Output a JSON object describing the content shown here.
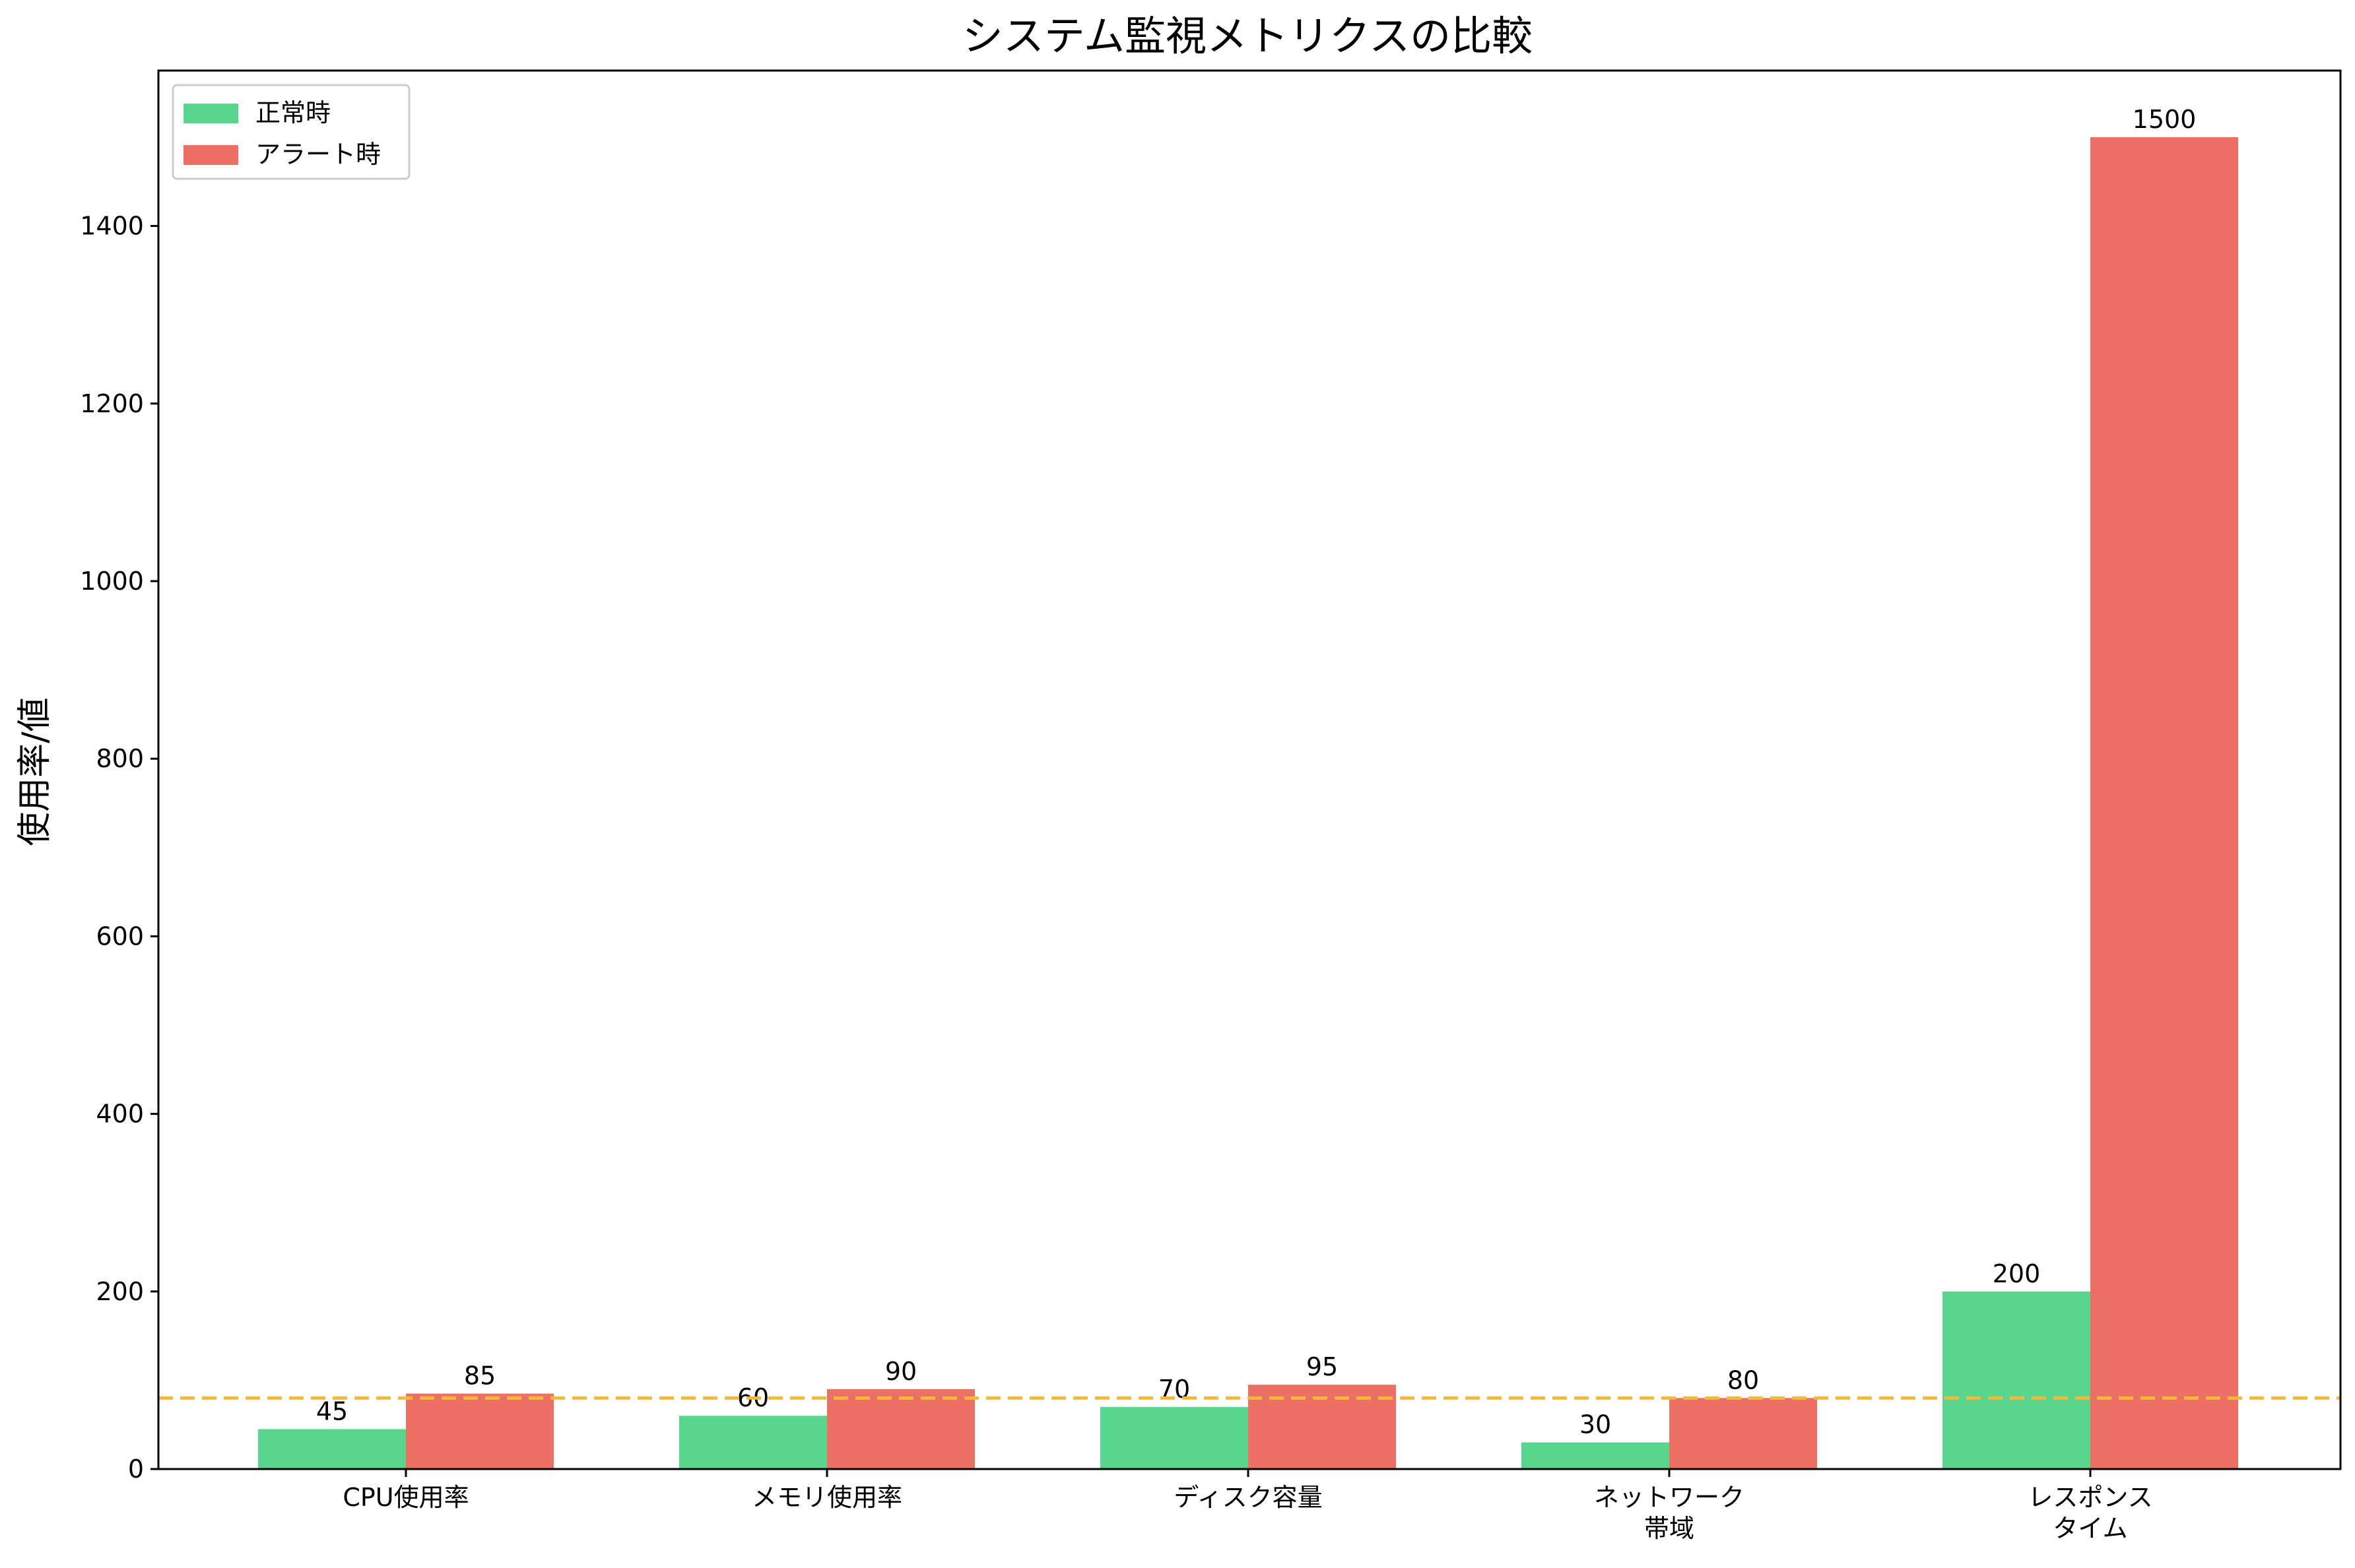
{
  "chart_data": {
    "type": "bar",
    "title": "システム監視メトリクスの比較",
    "xlabel": "",
    "ylabel": "使用率/値",
    "categories": [
      [
        "CPU使用率"
      ],
      [
        "メモリ使用率"
      ],
      [
        "ディスク容量"
      ],
      [
        "ネットワーク",
        "帯域"
      ],
      [
        "レスポンス",
        "タイム"
      ]
    ],
    "series": [
      {
        "name": "正常時",
        "values": [
          45,
          60,
          70,
          30,
          200
        ],
        "color": "#58d68d"
      },
      {
        "name": "アラート時",
        "values": [
          85,
          90,
          95,
          80,
          1500
        ],
        "color": "#ec7063"
      }
    ],
    "ylim": [
      0,
      1575
    ],
    "yticks": [
      0,
      200,
      400,
      600,
      800,
      1000,
      1200,
      1400
    ],
    "threshold": {
      "value": 80,
      "color": "#f5b83d",
      "style": "dashed"
    },
    "legend": "top-left",
    "grid": false
  }
}
